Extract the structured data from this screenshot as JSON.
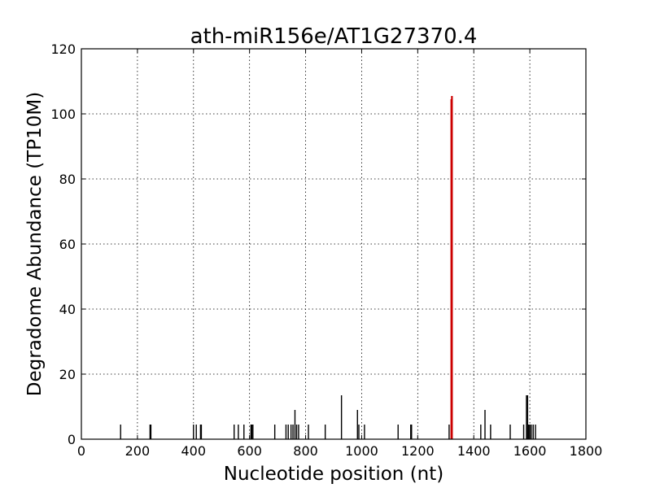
{
  "chart_data": {
    "type": "bar",
    "title": "ath-miR156e/AT1G27370.4",
    "xlabel": "Nucleotide position (nt)",
    "ylabel": "Degradome Abundance (TP10M)",
    "xlim": [
      0,
      1800
    ],
    "ylim": [
      0,
      120
    ],
    "xticks": [
      0,
      200,
      400,
      600,
      800,
      1000,
      1200,
      1400,
      1600,
      1800
    ],
    "yticks": [
      0,
      20,
      40,
      60,
      80,
      100,
      120
    ],
    "grid": true,
    "colors": {
      "background_peaks": "#000000",
      "target_peak": "#cc0000"
    },
    "series": [
      {
        "color": "#000000",
        "x": [
          140,
          245,
          248,
          400,
          410,
          425,
          428,
          545,
          560,
          580,
          605,
          608,
          612,
          690,
          730,
          738,
          748,
          755,
          762,
          768,
          775,
          810,
          870,
          928,
          985,
          990,
          1010,
          1130,
          1175,
          1178,
          1312,
          1425,
          1440,
          1460,
          1530,
          1578,
          1588,
          1592,
          1596,
          1600,
          1605,
          1612,
          1620
        ],
        "values": [
          4.5,
          4.5,
          4.5,
          4.5,
          4.5,
          4.5,
          4.5,
          4.5,
          4.5,
          4.5,
          4.5,
          4.5,
          4.5,
          4.5,
          4.5,
          4.5,
          4.5,
          4.5,
          9.0,
          4.5,
          4.5,
          4.5,
          4.5,
          13.5,
          9.0,
          4.5,
          4.5,
          4.5,
          4.5,
          4.5,
          4.5,
          4.5,
          9.0,
          4.5,
          4.5,
          4.5,
          13.5,
          13.5,
          4.5,
          4.5,
          4.5,
          4.5,
          4.5
        ]
      },
      {
        "color": "#cc0000",
        "x": [
          1320,
          1322
        ],
        "values": [
          104.5,
          105.5
        ]
      }
    ]
  }
}
